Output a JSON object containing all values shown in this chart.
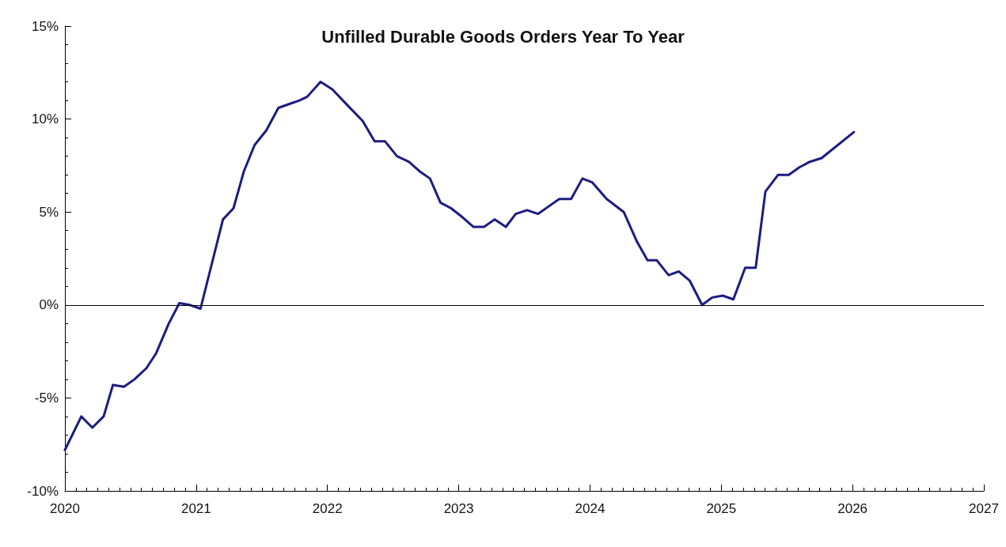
{
  "chart_data": {
    "type": "line",
    "title": "Unfilled Durable Goods Orders Year To Year",
    "x": [
      2020.0,
      2020.125,
      2020.209,
      2020.295,
      2020.366,
      2020.45,
      2020.53,
      2020.621,
      2020.695,
      2020.791,
      2020.872,
      2020.952,
      2021.033,
      2021.204,
      2021.284,
      2021.364,
      2021.445,
      2021.535,
      2021.626,
      2021.706,
      2021.786,
      2021.846,
      2021.947,
      2022.037,
      2022.158,
      2022.268,
      2022.359,
      2022.439,
      2022.53,
      2022.62,
      2022.7,
      2022.781,
      2022.861,
      2022.942,
      2023.032,
      2023.112,
      2023.193,
      2023.273,
      2023.359,
      2023.434,
      2023.52,
      2023.605,
      2023.685,
      2023.766,
      2023.856,
      2023.942,
      2024.016,
      2024.127,
      2024.257,
      2024.358,
      2024.438,
      2024.509,
      2024.599,
      2024.676,
      2024.76,
      2024.854,
      2024.931,
      2025.011,
      2025.092,
      2025.182,
      2025.262,
      2025.336,
      2025.433,
      2025.514,
      2025.594,
      2025.674,
      2025.764,
      2026.01
    ],
    "series": [
      {
        "color": "#1c1c82",
        "values": [
          -7.8,
          -6.0,
          -6.6,
          -6.0,
          -4.3,
          -4.4,
          -4.0,
          -3.4,
          -2.6,
          -1.0,
          0.1,
          0.0,
          -0.2,
          4.6,
          5.2,
          7.2,
          8.6,
          9.4,
          10.6,
          10.8,
          11.0,
          11.2,
          12.0,
          11.6,
          10.7,
          9.9,
          8.8,
          8.8,
          8.0,
          7.7,
          7.2,
          6.8,
          5.5,
          5.2,
          4.7,
          4.2,
          4.2,
          4.6,
          4.2,
          4.9,
          5.1,
          4.9,
          5.3,
          5.7,
          5.7,
          6.8,
          6.6,
          5.7,
          5.0,
          3.4,
          2.4,
          2.4,
          1.6,
          1.8,
          1.3,
          0.0,
          0.4,
          0.5,
          0.3,
          2.0,
          2.0,
          6.1,
          7.0,
          7.0,
          7.4,
          7.7,
          7.9,
          9.3
        ]
      }
    ],
    "xlim": [
      2020,
      2027
    ],
    "xticks": [
      2020,
      2021,
      2022,
      2023,
      2024,
      2025,
      2026,
      2027
    ],
    "ylim": [
      -10,
      15
    ],
    "yticks": [
      {
        "value": -10,
        "label": "-10%"
      },
      {
        "value": -5,
        "label": "-5%"
      },
      {
        "value": 0,
        "label": "0%"
      },
      {
        "value": 5,
        "label": "5%"
      },
      {
        "value": 10,
        "label": "10%"
      },
      {
        "value": 15,
        "label": "15%"
      }
    ],
    "ref_lines": [
      {
        "axis": "y",
        "value": 0,
        "label": null,
        "color": "#000000"
      }
    ],
    "marker": "none",
    "line_style": "solid"
  }
}
